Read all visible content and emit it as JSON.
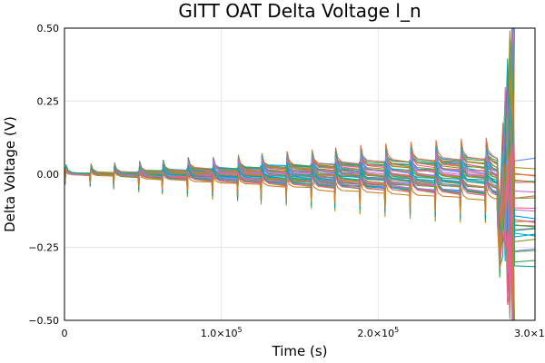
{
  "chart_data": {
    "type": "line",
    "title": "GITT OAT Delta Voltage l_n",
    "xlabel": "Time (s)",
    "ylabel": "Delta Voltage (V)",
    "xlim": [
      0,
      300000
    ],
    "ylim": [
      -0.5,
      0.5
    ],
    "grid": true,
    "legend": "none",
    "x_ticks": [
      {
        "value": 0,
        "label": "0"
      },
      {
        "value": 100000,
        "mantissa": "1.0×10",
        "exponent": "5"
      },
      {
        "value": 200000,
        "mantissa": "2.0×10",
        "exponent": "5"
      },
      {
        "value": 300000,
        "mantissa": "3.0×10",
        "exponent": "5"
      }
    ],
    "y_ticks": [
      {
        "value": -0.5,
        "label": "−0.50"
      },
      {
        "value": -0.25,
        "label": "−0.25"
      },
      {
        "value": 0,
        "label": "0.00"
      },
      {
        "value": 0.25,
        "label": "0.25"
      },
      {
        "value": 0.5,
        "label": "0.50"
      }
    ],
    "pulse_times": [
      0,
      16000,
      31000,
      47000,
      62000,
      78000,
      94000,
      110000,
      125000,
      141000,
      157000,
      172000,
      188000,
      204000,
      220000,
      236000,
      252000,
      268000
    ],
    "series_count": 40,
    "palette": [
      "#009AFA",
      "#E36F47",
      "#3EA44E",
      "#C371D2",
      "#AC8E18",
      "#00AAAE",
      "#ED5E93",
      "#C68225",
      "#00A98D",
      "#8E971D",
      "#00A9CD",
      "#9B7FE9",
      "#618DF6",
      "#F16C5C",
      "#DC63BC",
      "#6B9E32"
    ]
  }
}
